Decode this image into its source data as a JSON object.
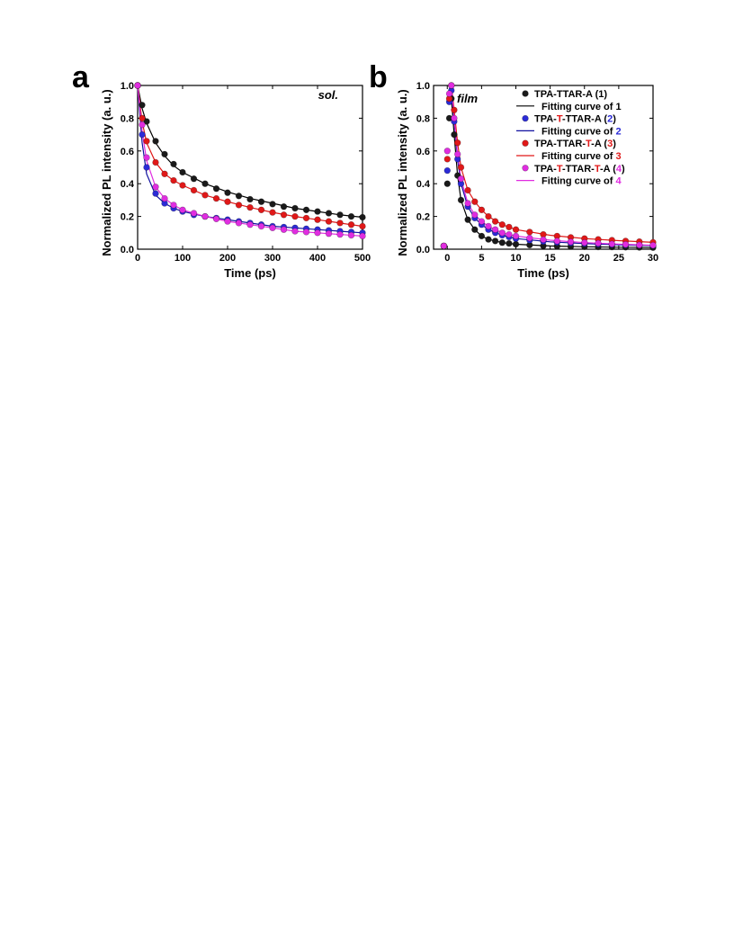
{
  "colors": {
    "series_1": "#1a1a1a",
    "series_2": "#2b2bd6",
    "series_3": "#e01818",
    "series_4": "#e02de0",
    "fit_1": "#000000",
    "fit_2": "#1010a0",
    "fit_3": "#e01818",
    "fit_4": "#e02de0"
  },
  "chart_data": [
    {
      "panel": "a",
      "type": "scatter",
      "annotation": "sol.",
      "xlabel": "Time (ps)",
      "ylabel": "Normalized PL intensity (a. u.)",
      "xlim": [
        0,
        500
      ],
      "ylim": [
        0,
        1.0
      ],
      "xticks": [
        0,
        100,
        200,
        300,
        400,
        500
      ],
      "yticks": [
        0.0,
        0.2,
        0.4,
        0.6,
        0.8,
        1.0
      ],
      "ytick_labels": [
        "0.0",
        "0.2",
        "0.4",
        "0.6",
        "0.8",
        "1.0"
      ],
      "grid": false,
      "series": [
        {
          "id": "1",
          "role": "data",
          "x": [
            0,
            10,
            20,
            40,
            60,
            80,
            100,
            125,
            150,
            175,
            200,
            225,
            250,
            275,
            300,
            325,
            350,
            375,
            400,
            425,
            450,
            475,
            500
          ],
          "y": [
            1.0,
            0.88,
            0.78,
            0.66,
            0.58,
            0.52,
            0.47,
            0.43,
            0.4,
            0.37,
            0.345,
            0.325,
            0.305,
            0.29,
            0.275,
            0.26,
            0.25,
            0.24,
            0.23,
            0.22,
            0.21,
            0.2,
            0.195
          ]
        },
        {
          "id": "2",
          "role": "data",
          "x": [
            0,
            10,
            20,
            40,
            60,
            80,
            100,
            125,
            150,
            175,
            200,
            225,
            250,
            275,
            300,
            325,
            350,
            375,
            400,
            425,
            450,
            475,
            500
          ],
          "y": [
            1.0,
            0.7,
            0.5,
            0.34,
            0.28,
            0.25,
            0.23,
            0.21,
            0.2,
            0.19,
            0.18,
            0.17,
            0.16,
            0.15,
            0.14,
            0.135,
            0.13,
            0.125,
            0.12,
            0.115,
            0.11,
            0.105,
            0.1
          ]
        },
        {
          "id": "3",
          "role": "data",
          "x": [
            0,
            10,
            20,
            40,
            60,
            80,
            100,
            125,
            150,
            175,
            200,
            225,
            250,
            275,
            300,
            325,
            350,
            375,
            400,
            425,
            450,
            475,
            500
          ],
          "y": [
            1.0,
            0.8,
            0.66,
            0.53,
            0.46,
            0.42,
            0.39,
            0.36,
            0.33,
            0.31,
            0.29,
            0.27,
            0.255,
            0.24,
            0.225,
            0.21,
            0.2,
            0.19,
            0.18,
            0.17,
            0.16,
            0.15,
            0.14
          ]
        },
        {
          "id": "4",
          "role": "data",
          "x": [
            0,
            10,
            20,
            40,
            60,
            80,
            100,
            125,
            150,
            175,
            200,
            225,
            250,
            275,
            300,
            325,
            350,
            375,
            400,
            425,
            450,
            475,
            500
          ],
          "y": [
            1.0,
            0.76,
            0.56,
            0.38,
            0.31,
            0.27,
            0.24,
            0.22,
            0.2,
            0.185,
            0.17,
            0.16,
            0.15,
            0.14,
            0.13,
            0.12,
            0.11,
            0.105,
            0.1,
            0.095,
            0.09,
            0.085,
            0.08
          ]
        },
        {
          "id": "1",
          "role": "fit",
          "x": [
            0,
            10,
            20,
            40,
            60,
            80,
            100,
            150,
            200,
            250,
            300,
            350,
            400,
            450,
            500
          ],
          "y": [
            1.0,
            0.86,
            0.77,
            0.65,
            0.57,
            0.51,
            0.47,
            0.4,
            0.35,
            0.31,
            0.28,
            0.25,
            0.23,
            0.21,
            0.195
          ]
        },
        {
          "id": "2",
          "role": "fit",
          "x": [
            0,
            10,
            20,
            40,
            60,
            80,
            100,
            150,
            200,
            250,
            300,
            350,
            400,
            450,
            500
          ],
          "y": [
            1.0,
            0.65,
            0.46,
            0.33,
            0.28,
            0.25,
            0.23,
            0.2,
            0.18,
            0.16,
            0.14,
            0.13,
            0.12,
            0.11,
            0.1
          ]
        },
        {
          "id": "3",
          "role": "fit",
          "x": [
            0,
            10,
            20,
            40,
            60,
            80,
            100,
            150,
            200,
            250,
            300,
            350,
            400,
            450,
            500
          ],
          "y": [
            1.0,
            0.78,
            0.65,
            0.53,
            0.46,
            0.42,
            0.39,
            0.33,
            0.29,
            0.255,
            0.225,
            0.2,
            0.18,
            0.16,
            0.14
          ]
        },
        {
          "id": "4",
          "role": "fit",
          "x": [
            0,
            10,
            20,
            40,
            60,
            80,
            100,
            150,
            200,
            250,
            300,
            350,
            400,
            450,
            500
          ],
          "y": [
            1.0,
            0.72,
            0.54,
            0.38,
            0.31,
            0.27,
            0.24,
            0.2,
            0.17,
            0.15,
            0.13,
            0.11,
            0.1,
            0.09,
            0.08
          ]
        }
      ]
    },
    {
      "panel": "b",
      "type": "scatter",
      "annotation": "film",
      "xlabel": "Time (ps)",
      "ylabel": "Normalized PL intensity (a. u.)",
      "xlim": [
        -2,
        30
      ],
      "ylim": [
        0,
        1.0
      ],
      "xticks": [
        0,
        5,
        10,
        15,
        20,
        25,
        30
      ],
      "yticks": [
        0.0,
        0.2,
        0.4,
        0.6,
        0.8,
        1.0
      ],
      "ytick_labels": [
        "0.0",
        "0.2",
        "0.4",
        "0.6",
        "0.8",
        "1.0"
      ],
      "grid": false,
      "legend_position": "top-right",
      "series": [
        {
          "id": "1",
          "role": "data",
          "x": [
            -0.5,
            0,
            0.3,
            0.6,
            1,
            1.5,
            2,
            3,
            4,
            5,
            6,
            7,
            8,
            9,
            10,
            12,
            14,
            16,
            18,
            20,
            22,
            24,
            26,
            28,
            30
          ],
          "y": [
            0.02,
            0.4,
            0.8,
            0.92,
            0.7,
            0.45,
            0.3,
            0.18,
            0.12,
            0.08,
            0.06,
            0.05,
            0.04,
            0.035,
            0.03,
            0.025,
            0.02,
            0.018,
            0.016,
            0.015,
            0.014,
            0.013,
            0.012,
            0.011,
            0.01
          ]
        },
        {
          "id": "2",
          "role": "data",
          "x": [
            -0.5,
            0,
            0.3,
            0.6,
            1,
            1.5,
            2,
            3,
            4,
            5,
            6,
            7,
            8,
            9,
            10,
            12,
            14,
            16,
            18,
            20,
            22,
            24,
            26,
            28,
            30
          ],
          "y": [
            0.02,
            0.48,
            0.9,
            0.97,
            0.78,
            0.55,
            0.4,
            0.26,
            0.19,
            0.15,
            0.12,
            0.1,
            0.085,
            0.075,
            0.065,
            0.055,
            0.048,
            0.042,
            0.038,
            0.034,
            0.031,
            0.028,
            0.026,
            0.024,
            0.022
          ]
        },
        {
          "id": "3",
          "role": "data",
          "x": [
            -0.5,
            0,
            0.3,
            0.6,
            1,
            1.5,
            2,
            3,
            4,
            5,
            6,
            7,
            8,
            9,
            10,
            12,
            14,
            16,
            18,
            20,
            22,
            24,
            26,
            28,
            30
          ],
          "y": [
            0.02,
            0.55,
            0.92,
            1.0,
            0.85,
            0.65,
            0.5,
            0.36,
            0.29,
            0.24,
            0.2,
            0.17,
            0.15,
            0.135,
            0.12,
            0.105,
            0.09,
            0.08,
            0.072,
            0.065,
            0.06,
            0.055,
            0.05,
            0.046,
            0.042
          ]
        },
        {
          "id": "4",
          "role": "data",
          "x": [
            -0.5,
            0,
            0.3,
            0.6,
            1,
            1.5,
            2,
            3,
            4,
            5,
            6,
            7,
            8,
            9,
            10,
            12,
            14,
            16,
            18,
            20,
            22,
            24,
            26,
            28,
            30
          ],
          "y": [
            0.02,
            0.6,
            0.95,
            1.0,
            0.8,
            0.58,
            0.43,
            0.28,
            0.21,
            0.17,
            0.14,
            0.12,
            0.1,
            0.09,
            0.08,
            0.068,
            0.058,
            0.05,
            0.045,
            0.04,
            0.036,
            0.032,
            0.029,
            0.026,
            0.024
          ]
        },
        {
          "id": "1",
          "role": "fit",
          "x": [
            0.6,
            1,
            1.5,
            2,
            3,
            4,
            5,
            6,
            8,
            10,
            15,
            20,
            25,
            30
          ],
          "y": [
            0.92,
            0.7,
            0.45,
            0.3,
            0.18,
            0.12,
            0.08,
            0.06,
            0.04,
            0.03,
            0.02,
            0.015,
            0.012,
            0.01
          ]
        },
        {
          "id": "2",
          "role": "fit",
          "x": [
            0.6,
            1,
            1.5,
            2,
            3,
            4,
            5,
            6,
            8,
            10,
            15,
            20,
            25,
            30
          ],
          "y": [
            0.97,
            0.78,
            0.55,
            0.4,
            0.26,
            0.19,
            0.15,
            0.12,
            0.085,
            0.065,
            0.045,
            0.034,
            0.027,
            0.022
          ]
        },
        {
          "id": "3",
          "role": "fit",
          "x": [
            0.6,
            1,
            1.5,
            2,
            3,
            4,
            5,
            6,
            8,
            10,
            15,
            20,
            25,
            30
          ],
          "y": [
            1.0,
            0.85,
            0.65,
            0.5,
            0.36,
            0.29,
            0.24,
            0.2,
            0.15,
            0.12,
            0.085,
            0.065,
            0.052,
            0.042
          ]
        },
        {
          "id": "4",
          "role": "fit",
          "x": [
            0.6,
            1,
            1.5,
            2,
            3,
            4,
            5,
            6,
            8,
            10,
            15,
            20,
            25,
            30
          ],
          "y": [
            1.0,
            0.8,
            0.58,
            0.43,
            0.28,
            0.21,
            0.17,
            0.14,
            0.1,
            0.08,
            0.055,
            0.04,
            0.031,
            0.024
          ]
        }
      ],
      "legend": [
        {
          "marker": "dot",
          "series": "1",
          "parts": [
            {
              "text": "TPA-TTAR-A (1)",
              "color": "#000000"
            }
          ]
        },
        {
          "marker": "line",
          "series": "1",
          "parts": [
            {
              "text": "Fitting curve of 1",
              "color": "#000000"
            }
          ]
        },
        {
          "marker": "dot",
          "series": "2",
          "parts": [
            {
              "text": "TPA-",
              "color": "#000000"
            },
            {
              "text": "T",
              "color": "#e01818"
            },
            {
              "text": "-TTAR-A (",
              "color": "#000000"
            },
            {
              "text": "2",
              "color": "#2b2bd6"
            },
            {
              "text": ")",
              "color": "#000000"
            }
          ]
        },
        {
          "marker": "line",
          "series": "2",
          "parts": [
            {
              "text": "Fitting curve of ",
              "color": "#000000"
            },
            {
              "text": "2",
              "color": "#2b2bd6"
            }
          ]
        },
        {
          "marker": "dot",
          "series": "3",
          "parts": [
            {
              "text": "TPA-TTAR-",
              "color": "#000000"
            },
            {
              "text": "T",
              "color": "#e01818"
            },
            {
              "text": "-A (",
              "color": "#000000"
            },
            {
              "text": "3",
              "color": "#e01818"
            },
            {
              "text": ")",
              "color": "#000000"
            }
          ]
        },
        {
          "marker": "line",
          "series": "3",
          "parts": [
            {
              "text": "Fitting curve of ",
              "color": "#000000"
            },
            {
              "text": "3",
              "color": "#e01818"
            }
          ]
        },
        {
          "marker": "dot",
          "series": "4",
          "parts": [
            {
              "text": "TPA-",
              "color": "#000000"
            },
            {
              "text": "T",
              "color": "#e01818"
            },
            {
              "text": "-TTAR-",
              "color": "#000000"
            },
            {
              "text": "T",
              "color": "#e01818"
            },
            {
              "text": "-A (",
              "color": "#000000"
            },
            {
              "text": "4",
              "color": "#e02de0"
            },
            {
              "text": ")",
              "color": "#000000"
            }
          ]
        },
        {
          "marker": "line",
          "series": "4",
          "parts": [
            {
              "text": "Fitting curve of ",
              "color": "#000000"
            },
            {
              "text": "4",
              "color": "#e02de0"
            }
          ]
        }
      ]
    }
  ]
}
